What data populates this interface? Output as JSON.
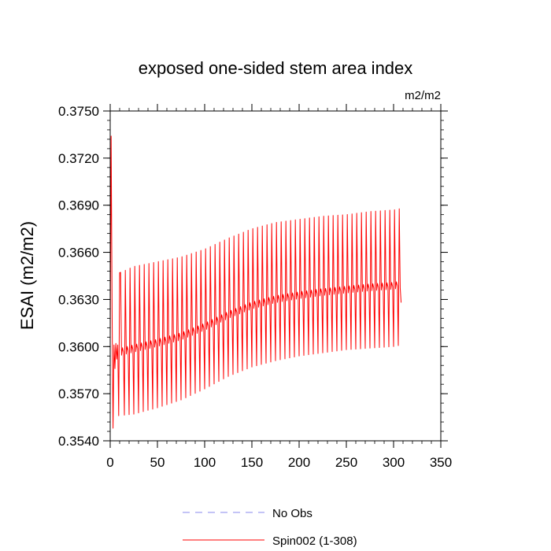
{
  "chart_data": {
    "type": "line",
    "title": "exposed one-sided stem area index",
    "units_label": "m2/m2",
    "xlabel": "",
    "ylabel": "ESAI  (m2/m2)",
    "xlim": [
      0,
      350
    ],
    "ylim": [
      0.354,
      0.375
    ],
    "x_ticks": [
      0,
      50,
      100,
      150,
      200,
      250,
      300,
      350
    ],
    "x_tick_labels": [
      "0",
      "50",
      "100",
      "150",
      "200",
      "250",
      "300",
      "350"
    ],
    "y_ticks": [
      0.354,
      0.357,
      0.36,
      0.363,
      0.366,
      0.369,
      0.372,
      0.375
    ],
    "y_tick_labels": [
      "0.3540",
      "0.3570",
      "0.3600",
      "0.3630",
      "0.3660",
      "0.3690",
      "0.3720",
      "0.3750"
    ],
    "series": [
      {
        "name": "No Obs",
        "color": "#8888ee",
        "style": "dashed",
        "x": [],
        "y": []
      },
      {
        "name": "Spin002 (1-308)",
        "color": "#ff0000",
        "style": "solid",
        "x_range": [
          1,
          308
        ],
        "cycle_years": 5,
        "cycle_shape": [
          0.0,
          1.0,
          0.42,
          0.47,
          0.44
        ],
        "initial": {
          "x": [
            0,
            1,
            2,
            3,
            4,
            5,
            6,
            7,
            8,
            9,
            10
          ],
          "y": [
            0.3602,
            0.3734,
            0.3622,
            0.3548,
            0.3601,
            0.3586,
            0.3602,
            0.3592,
            0.3601,
            0.3556,
            0.3647
          ]
        },
        "envelope": {
          "x": [
            10,
            25,
            50,
            75,
            100,
            125,
            150,
            175,
            200,
            225,
            250,
            275,
            300,
            308
          ],
          "min": [
            0.3556,
            0.3557,
            0.3561,
            0.3566,
            0.3573,
            0.3581,
            0.3587,
            0.3591,
            0.3594,
            0.3596,
            0.3598,
            0.3599,
            0.36,
            0.3601
          ],
          "max": [
            0.3647,
            0.3651,
            0.3654,
            0.3657,
            0.3662,
            0.3669,
            0.3675,
            0.3679,
            0.3681,
            0.3683,
            0.3684,
            0.3686,
            0.3687,
            0.3688
          ]
        },
        "end": {
          "x": 308,
          "y": 0.3628
        }
      }
    ],
    "legend": {
      "placement": "bottom-center",
      "entries": [
        "No Obs",
        "Spin002 (1-308)"
      ]
    }
  }
}
